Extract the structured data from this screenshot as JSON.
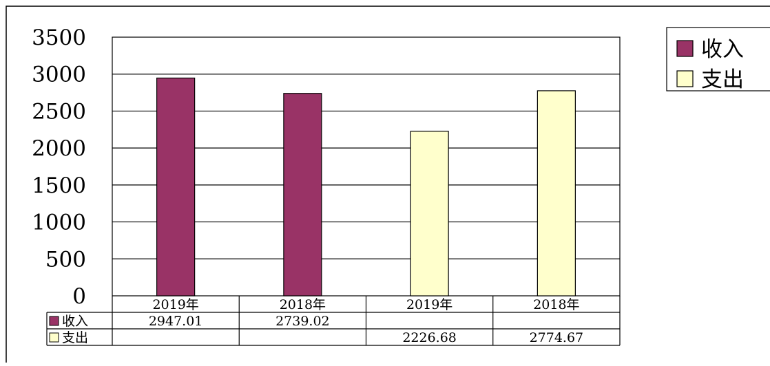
{
  "chart_data": {
    "type": "bar",
    "categories": [
      "2019年",
      "2018年",
      "2019年",
      "2018年"
    ],
    "series": [
      {
        "name": "收入",
        "color": "#993366",
        "values": [
          2947.01,
          2739.02,
          null,
          null
        ],
        "labels": [
          "2947.01",
          "2739.02",
          "",
          ""
        ]
      },
      {
        "name": "支出",
        "color": "#FFFFCC",
        "values": [
          null,
          null,
          2226.68,
          2774.67
        ],
        "labels": [
          "",
          "",
          "2226.68",
          "2774.67"
        ]
      }
    ],
    "ylim": [
      0,
      3500
    ],
    "yticks": [
      0,
      500,
      1000,
      1500,
      2000,
      2500,
      3000,
      3500
    ],
    "grid": true,
    "legend": "right",
    "data_table": true
  }
}
